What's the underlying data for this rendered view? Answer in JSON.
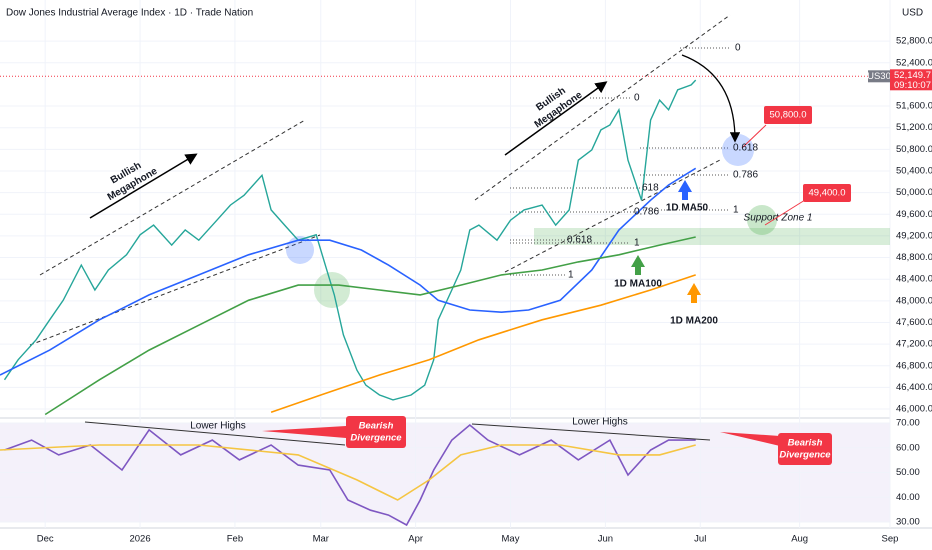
{
  "title": "Dow Jones Industrial Average Index · 1D · Trade Nation",
  "currency": "USD",
  "chart_data": [
    {
      "type": "line",
      "symbol": "US30",
      "last_price": 52149.7,
      "last_price_label": "52,149.7",
      "countdown": "09:10:07",
      "xlim": [
        -10,
        187
      ],
      "xticks": [
        {
          "value": 0,
          "label": "Dec"
        },
        {
          "value": 21,
          "label": "2026"
        },
        {
          "value": 42,
          "label": "Feb"
        },
        {
          "value": 61,
          "label": "Mar"
        },
        {
          "value": 82,
          "label": "Apr"
        },
        {
          "value": 103,
          "label": "May"
        },
        {
          "value": 124,
          "label": "Jun"
        },
        {
          "value": 145,
          "label": "Jul"
        },
        {
          "value": 167,
          "label": "Aug"
        },
        {
          "value": 187,
          "label": "Sep"
        }
      ],
      "ylim": [
        45890,
        53560
      ],
      "yticks": [
        {
          "value": 52800,
          "label": "52,800.0"
        },
        {
          "value": 52400,
          "label": "52,400.0"
        },
        {
          "value": 51600,
          "label": "51,600.0"
        },
        {
          "value": 51200,
          "label": "51,200.0"
        },
        {
          "value": 50800,
          "label": "50,800.0"
        },
        {
          "value": 50400,
          "label": "50,400.0"
        },
        {
          "value": 50000,
          "label": "50,000.0"
        },
        {
          "value": 49600,
          "label": "49,600.0"
        },
        {
          "value": 49200,
          "label": "49,200.0"
        },
        {
          "value": 48800,
          "label": "48,800.0"
        },
        {
          "value": 48400,
          "label": "48,400.0"
        },
        {
          "value": 48000,
          "label": "48,000.0"
        },
        {
          "value": 47600,
          "label": "47,600.0"
        },
        {
          "value": 47200,
          "label": "47,200.0"
        },
        {
          "value": 46800,
          "label": "46,800.0"
        },
        {
          "value": 46400,
          "label": "46,400.0"
        },
        {
          "value": 46000,
          "label": "46,000.0"
        }
      ],
      "series": [
        {
          "color": "#26a69a",
          "x": [
            -9,
            -6,
            -2,
            1,
            4,
            8,
            11,
            14,
            18,
            21,
            24,
            28,
            31,
            34,
            38,
            41,
            44,
            48,
            50,
            53,
            56,
            60,
            62,
            64,
            66,
            69,
            71,
            74,
            77,
            81,
            84,
            86,
            87,
            90,
            92,
            94,
            96,
            100,
            103,
            106,
            110,
            113,
            116,
            118,
            121,
            123,
            125,
            127,
            129,
            132,
            134,
            136,
            138,
            140,
            143,
            144
          ],
          "values": [
            46540,
            46910,
            47280,
            47650,
            48010,
            48660,
            48200,
            48570,
            48850,
            49220,
            49400,
            49030,
            49310,
            49120,
            49490,
            49770,
            49950,
            50320,
            49680,
            49400,
            49120,
            49220,
            48660,
            48110,
            47370,
            46720,
            46440,
            46260,
            46170,
            46260,
            46440,
            46910,
            47650,
            48200,
            48570,
            49310,
            49400,
            49120,
            49490,
            49680,
            49770,
            49400,
            49680,
            50600,
            50790,
            51160,
            51250,
            51530,
            50600,
            49860,
            51340,
            51710,
            51530,
            51900,
            51990,
            52080
          ]
        },
        {
          "color": "#2962ff",
          "x": [
            -10,
            1,
            12,
            23,
            34,
            45,
            56,
            63,
            70,
            76,
            83,
            87,
            94,
            101,
            107,
            114,
            121,
            127,
            134,
            138,
            144
          ],
          "values": [
            46630,
            47090,
            47650,
            48110,
            48480,
            48850,
            49120,
            49120,
            48940,
            48660,
            48290,
            48010,
            47830,
            47790,
            47830,
            48010,
            48570,
            49310,
            49860,
            50140,
            50450
          ]
        },
        {
          "color": "#43a047",
          "x": [
            0,
            12,
            23,
            34,
            45,
            56,
            65,
            74,
            83,
            92,
            101,
            110,
            118,
            127,
            136,
            144
          ],
          "values": [
            45900,
            46540,
            47090,
            47550,
            48010,
            48290,
            48290,
            48200,
            48110,
            48290,
            48480,
            48570,
            48720,
            48850,
            49030,
            49180
          ]
        },
        {
          "color": "#ff9800",
          "x": [
            50,
            61,
            74,
            85,
            96,
            110,
            123,
            134,
            144
          ],
          "values": [
            45940,
            46260,
            46630,
            46910,
            47280,
            47650,
            47920,
            48200,
            48480
          ]
        }
      ],
      "annotations": [
        "Bullish",
        "Megaphone",
        "Bullish",
        "Megaphone",
        "1D MA50",
        "1D MA100",
        "1D MA200",
        "Support Zone 1",
        "50,800.0",
        "49,400.0"
      ],
      "fib_labels": [
        "0",
        "0",
        "0.618",
        "0.786",
        "1",
        "618",
        "0.786",
        "0.618",
        "1",
        "1"
      ]
    },
    {
      "type": "line",
      "xlim": [
        -10,
        187
      ],
      "ylim": [
        27.6,
        71.2
      ],
      "yticks": [
        {
          "value": 70,
          "label": "70.00"
        },
        {
          "value": 60,
          "label": "60.00"
        },
        {
          "value": 50,
          "label": "50.00"
        },
        {
          "value": 40,
          "label": "40.00"
        },
        {
          "value": 30,
          "label": "30.00"
        }
      ],
      "series": [
        {
          "color": "#7e57c2",
          "x": [
            -9,
            -3,
            3,
            10,
            17,
            23,
            30,
            37,
            43,
            50,
            56,
            63,
            67,
            72,
            76,
            80,
            83,
            86,
            90,
            94,
            98,
            105,
            112,
            118,
            125,
            129,
            134,
            138,
            144
          ],
          "values": [
            59.1,
            63.1,
            57.1,
            61.1,
            51.0,
            67.2,
            57.1,
            63.1,
            55.1,
            61.1,
            53.0,
            51.0,
            38.9,
            34.8,
            32.8,
            28.8,
            38.9,
            51.0,
            63.1,
            69.2,
            63.1,
            57.1,
            63.1,
            55.1,
            63.1,
            49.0,
            59.1,
            63.1,
            63.1
          ]
        },
        {
          "color": "#f5c542",
          "x": [
            -10,
            12,
            34,
            56,
            69,
            78,
            85,
            92,
            101,
            114,
            127,
            136,
            144
          ],
          "values": [
            59.1,
            61.1,
            61.1,
            57.1,
            47.0,
            38.9,
            47.0,
            57.1,
            61.1,
            61.1,
            57.1,
            57.1,
            61.1
          ]
        }
      ],
      "annotations": [
        "Lower Highs",
        "Bearish",
        "Divergence",
        "Lower Highs",
        "Bearish",
        "Divergence"
      ]
    }
  ]
}
